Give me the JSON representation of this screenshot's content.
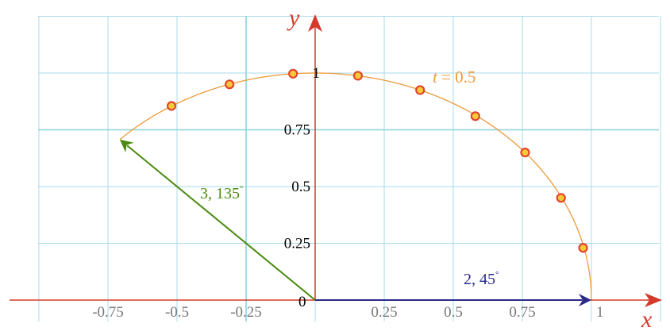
{
  "axes": {
    "x_name": "x",
    "y_name": "y",
    "origin_label": "0",
    "x_ticks": [
      {
        "value": -0.75,
        "label": "-0.75"
      },
      {
        "value": -0.5,
        "label": "-0.5"
      },
      {
        "value": -0.25,
        "label": "-0.25"
      },
      {
        "value": 0.25,
        "label": "0.25"
      },
      {
        "value": 0.5,
        "label": "0.5"
      },
      {
        "value": 0.75,
        "label": "0.75"
      },
      {
        "value": 1,
        "label": "1"
      }
    ],
    "y_ticks": [
      {
        "value": 0.25,
        "label": "0.25"
      },
      {
        "value": 0.5,
        "label": "0.5"
      },
      {
        "value": 0.75,
        "label": "0.75"
      },
      {
        "value": 1,
        "label": "1"
      }
    ],
    "x_range": [
      -1.1,
      1.25
    ],
    "y_range": [
      -0.12,
      1.2
    ],
    "grid_step": 0.25,
    "x_color": "#d43a2a",
    "y_color": "#d43a2a"
  },
  "curve": {
    "label_var": "t",
    "label_rest": " = 0.5",
    "color": "#ee9a3a",
    "description": "semicircle of radius 1 traced from angle 0 to 135 degrees",
    "start_angle_deg": 0,
    "end_angle_deg": 135
  },
  "points": [
    {
      "x": 0.97,
      "y": 0.23
    },
    {
      "x": 0.89,
      "y": 0.45
    },
    {
      "x": 0.76,
      "y": 0.65
    },
    {
      "x": 0.58,
      "y": 0.81
    },
    {
      "x": 0.38,
      "y": 0.925
    },
    {
      "x": 0.155,
      "y": 0.988
    },
    {
      "x": -0.08,
      "y": 0.997
    },
    {
      "x": -0.31,
      "y": 0.95
    },
    {
      "x": -0.52,
      "y": 0.855
    }
  ],
  "point_style": {
    "fill": "#f5c93a",
    "stroke": "#e0452a"
  },
  "vectors": [
    {
      "name": "vector-blue",
      "to_x": 1.0,
      "to_y": 0.0,
      "label_main": "2, 45",
      "label_deg": "°",
      "color": "#2a2a8a"
    },
    {
      "name": "vector-green",
      "to_x": -0.7071,
      "to_y": 0.7071,
      "label_main": "3, 135",
      "label_deg": "°",
      "color": "#4a8a10"
    }
  ],
  "colors": {
    "grid": "#a9dbe8",
    "grid_strong": "#8fd0e0"
  }
}
